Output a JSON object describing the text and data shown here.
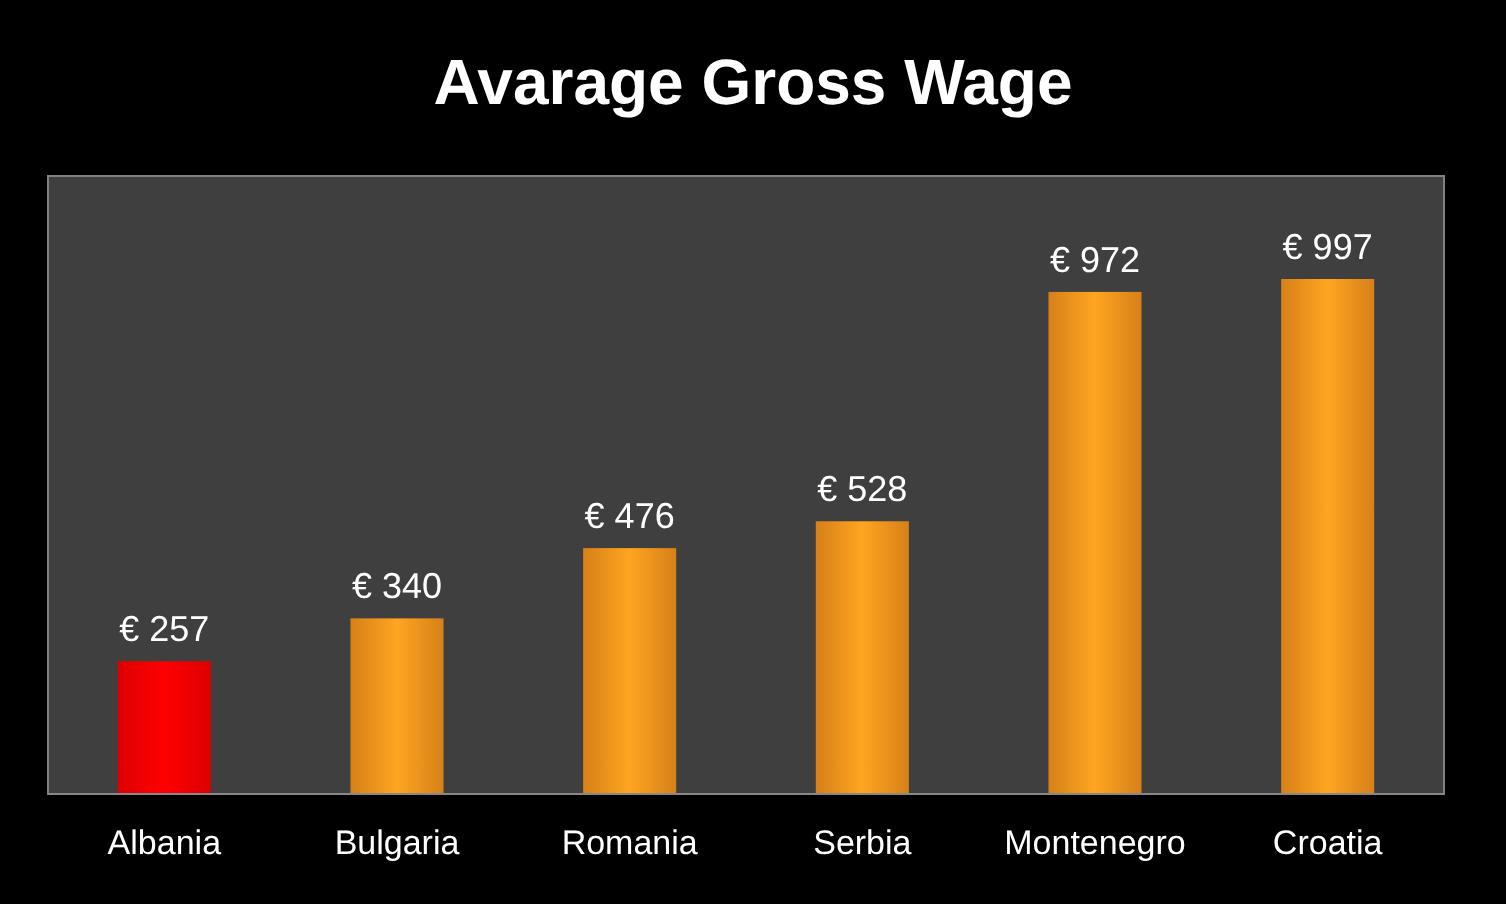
{
  "chart_data": {
    "type": "bar",
    "title": "Avarage Gross Wage",
    "categories": [
      "Albania",
      "Bulgaria",
      "Romania",
      "Serbia",
      "Montenegro",
      "Croatia"
    ],
    "values": [
      257,
      340,
      476,
      528,
      972,
      997
    ],
    "colors": [
      "#ff0000",
      "#f7941d",
      "#f7941d",
      "#f7941d",
      "#f7941d",
      "#f7941d"
    ],
    "value_labels": [
      "€ 257",
      "€ 340",
      "€ 476",
      "€ 528",
      "€ 972",
      "€ 997"
    ]
  }
}
